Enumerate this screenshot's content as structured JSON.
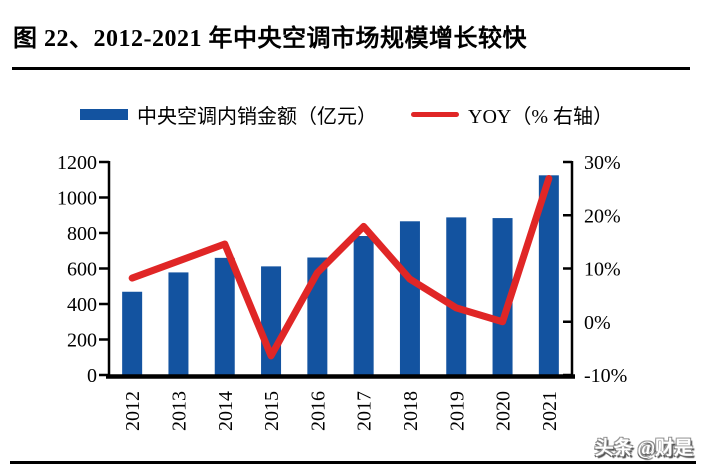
{
  "page": {
    "title": "图 22、2012-2021 年中央空调市场规模增长较快",
    "watermark": "头条 @财是"
  },
  "legend": {
    "bar_label": "中央空调内销金额（亿元）",
    "line_label": "YOY（% 右轴）"
  },
  "colors": {
    "bar": "#1353A0",
    "line": "#E02626",
    "axis": "#000000",
    "text": "#000000"
  },
  "chart_data": {
    "type": "bar",
    "title": "图 22、2012-2021 年中央空调市场规模增长较快",
    "categories": [
      "2012",
      "2013",
      "2014",
      "2015",
      "2016",
      "2017",
      "2018",
      "2019",
      "2020",
      "2021"
    ],
    "series": [
      {
        "name": "中央空调内销金额（亿元）",
        "type": "bar",
        "axis": "left",
        "color": "#1353A0",
        "values": [
          469,
          578,
          660,
          612,
          662,
          783,
          866,
          888,
          884,
          1125
        ]
      },
      {
        "name": "YOY（% 右轴）",
        "type": "line",
        "axis": "right",
        "color": "#E02626",
        "values": [
          8.2,
          11.4,
          14.6,
          -6.4,
          9.2,
          17.9,
          8.0,
          2.6,
          0.0,
          26.9
        ]
      }
    ],
    "left_axis": {
      "min": 0,
      "max": 1200,
      "step": 200,
      "tick_labels": [
        "0",
        "200",
        "400",
        "600",
        "800",
        "1000",
        "1200"
      ]
    },
    "right_axis": {
      "min": -10,
      "max": 30,
      "step": 10,
      "tick_labels": [
        "-10%",
        "0%",
        "10%",
        "20%",
        "30%"
      ]
    },
    "grid": false,
    "legend_position": "top"
  }
}
